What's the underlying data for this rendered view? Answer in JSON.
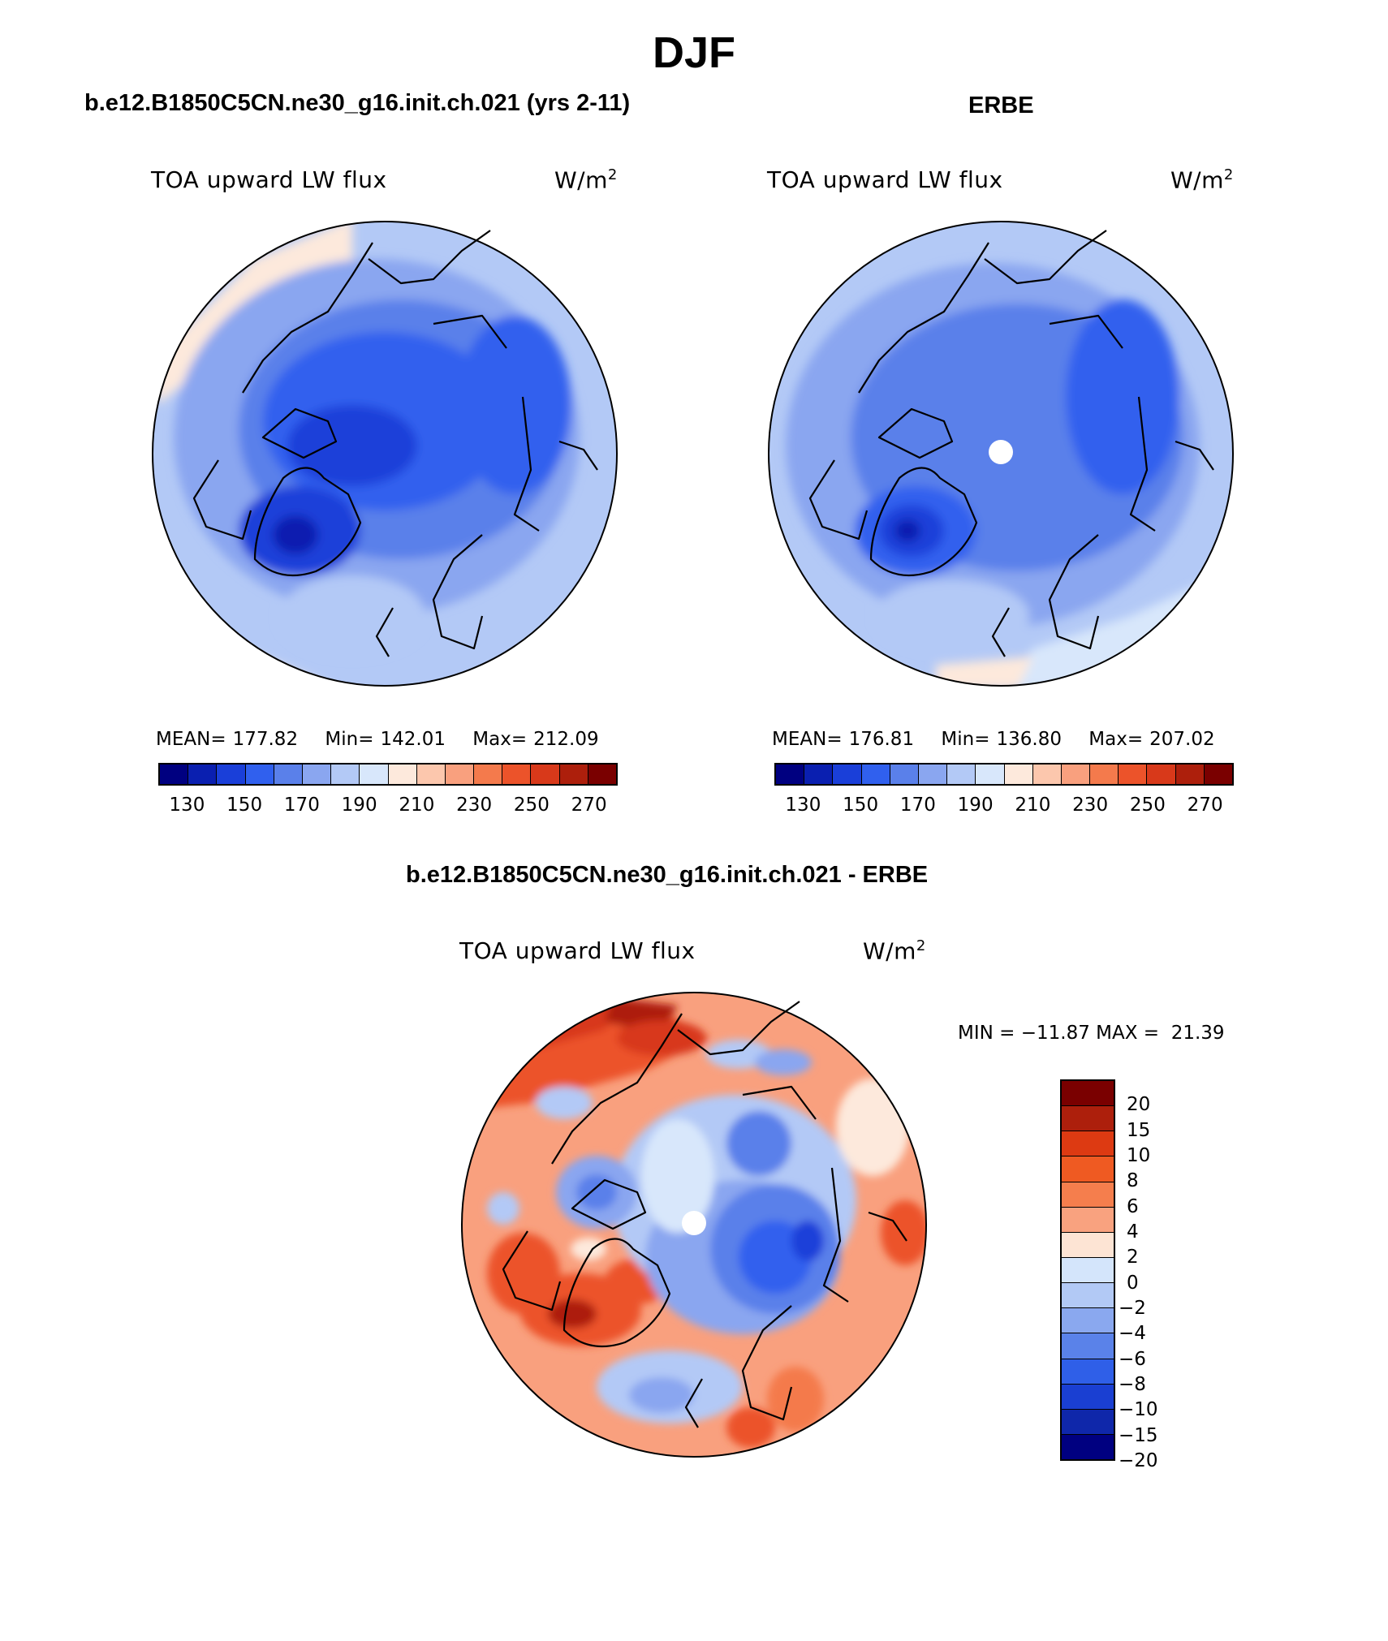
{
  "figure": {
    "title": "DJF"
  },
  "panels": [
    {
      "id": "model",
      "title": "b.e12.B1850C5CN.ne30_g16.init.ch.021 (yrs 2-11)",
      "variable": "TOA upward LW flux",
      "units_base": "W/m",
      "units_exp": "2",
      "mean_label": "MEAN=",
      "mean": "177.82",
      "min_label": "Min=",
      "min": "142.01",
      "max_label": "Max=",
      "max": "212.09"
    },
    {
      "id": "obs",
      "title": "ERBE",
      "variable": "TOA upward LW flux",
      "units_base": "W/m",
      "units_exp": "2",
      "mean_label": "MEAN=",
      "mean": "176.81",
      "min_label": "Min=",
      "min": "136.80",
      "max_label": "Max=",
      "max": "207.02"
    },
    {
      "id": "diff",
      "title": "b.e12.B1850C5CN.ne30_g16.init.ch.021 - ERBE",
      "variable": "TOA upward LW flux",
      "units_base": "W/m",
      "units_exp": "2",
      "minmax_text": "MIN = −11.87 MAX =  21.39"
    }
  ],
  "abs_colorbar": {
    "colors": [
      "#000080",
      "#0a1fb0",
      "#1a3fd9",
      "#3060ee",
      "#5a80ea",
      "#8aa6f0",
      "#b3c9f6",
      "#d8e7fb",
      "#fde9dc",
      "#fcc7ad",
      "#f9a07e",
      "#f47a4c",
      "#ec532a",
      "#d8391a",
      "#ad1f0c",
      "#7a0000"
    ],
    "ticks": [
      "130",
      "150",
      "170",
      "190",
      "210",
      "230",
      "250",
      "270"
    ]
  },
  "diff_colorbar": {
    "colors": [
      "#7a0000",
      "#ad1f0c",
      "#dd3a12",
      "#ef5a22",
      "#f57e4d",
      "#f9a27f",
      "#fde4d4",
      "#d4e5fb",
      "#b2c9f5",
      "#8aa8ef",
      "#5a82e9",
      "#2f5fe8",
      "#1a3fd2",
      "#0f27aa",
      "#000080"
    ],
    "ticks": [
      "20",
      "15",
      "10",
      "8",
      "6",
      "4",
      "2",
      "0",
      "−2",
      "−4",
      "−6",
      "−8",
      "−10",
      "−15",
      "−20"
    ]
  }
}
